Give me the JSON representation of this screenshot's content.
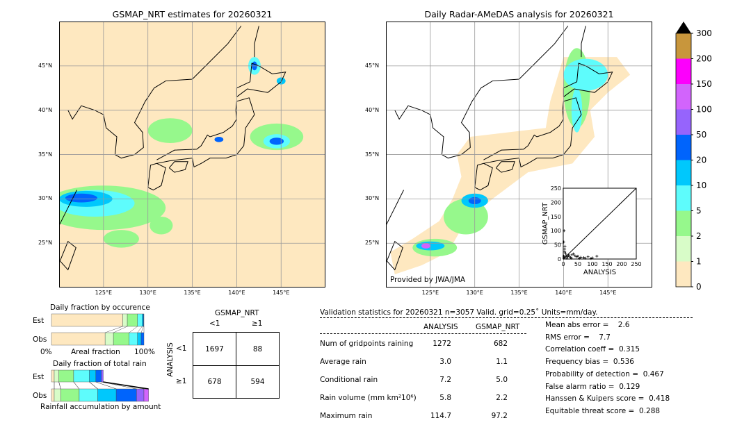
{
  "chart_data": [
    {
      "type": "heatmap",
      "title": "GSMAP_NRT estimates for 20260321",
      "x_ticks": [
        "125°E",
        "130°E",
        "135°E",
        "140°E",
        "145°E"
      ],
      "y_ticks": [
        "45°N",
        "40°N",
        "35°N",
        "30°N",
        "25°N"
      ],
      "lon_range": [
        120,
        150
      ],
      "lat_range": [
        20,
        50
      ],
      "grid": true
    },
    {
      "type": "heatmap",
      "title": "Daily Radar-AMeDAS analysis for 20260321",
      "x_ticks": [
        "125°E",
        "130°E",
        "135°E",
        "140°E",
        "145°E"
      ],
      "y_ticks": [
        "45°N",
        "40°N",
        "35°N",
        "30°N",
        "25°N"
      ],
      "lon_range": [
        120,
        150
      ],
      "lat_range": [
        20,
        50
      ],
      "grid": true,
      "annotation": "Provided by JWA/JMA"
    },
    {
      "type": "scatter",
      "xlabel": "ANALYSIS",
      "ylabel": "GSMAP_NRT",
      "xlim": [
        0,
        250
      ],
      "ylim": [
        0,
        250
      ],
      "x_ticks": [
        "0",
        "50",
        "100",
        "150",
        "200",
        "250"
      ],
      "y_ticks": [
        "0",
        "50",
        "100",
        "150",
        "200",
        "250"
      ],
      "points": [
        [
          2,
          60
        ],
        [
          3,
          100
        ],
        [
          5,
          35
        ],
        [
          5,
          25
        ],
        [
          8,
          20
        ],
        [
          10,
          12
        ],
        [
          15,
          8
        ],
        [
          20,
          10
        ],
        [
          25,
          5
        ],
        [
          30,
          15
        ],
        [
          35,
          18
        ],
        [
          40,
          12
        ],
        [
          45,
          8
        ],
        [
          50,
          10
        ],
        [
          60,
          6
        ],
        [
          70,
          5
        ],
        [
          85,
          8
        ],
        [
          100,
          4
        ],
        [
          115,
          10
        ],
        [
          4,
          5
        ],
        [
          12,
          3
        ],
        [
          18,
          15
        ],
        [
          28,
          3
        ],
        [
          55,
          2
        ],
        [
          75,
          3
        ],
        [
          95,
          2
        ],
        [
          6,
          45
        ],
        [
          2,
          10
        ],
        [
          1,
          3
        ]
      ]
    },
    {
      "type": "bar",
      "title": "Daily fraction by occurence",
      "xlabel": "Areal fraction",
      "x_ticks": [
        "0%",
        "100%"
      ],
      "categories": [
        "Est",
        "Obs"
      ],
      "series": [
        {
          "values_est": [
            0.77,
            0.05,
            0.11,
            0.05,
            0.015,
            0.005
          ]
        },
        {
          "values_obs": [
            0.58,
            0.09,
            0.17,
            0.09,
            0.04,
            0.03
          ]
        }
      ]
    },
    {
      "type": "bar",
      "title": "Daily fraction of total rain",
      "xlabel": "Rainfall accumulation by amount",
      "categories": [
        "Est",
        "Obs"
      ],
      "series": [
        {
          "values_est": [
            0.03,
            0.05,
            0.16,
            0.17,
            0.07,
            0.06,
            0.02
          ]
        },
        {
          "values_obs": [
            0.03,
            0.07,
            0.2,
            0.2,
            0.2,
            0.22,
            0.08,
            0.05
          ]
        }
      ]
    },
    {
      "type": "table",
      "title": "GSMAP_NRT",
      "row_label": "ANALYSIS",
      "col_headers": [
        "<1",
        "≥1"
      ],
      "row_headers": [
        "<1",
        "≥1"
      ],
      "cells": [
        [
          "1697",
          "88"
        ],
        [
          "678",
          "594"
        ]
      ]
    }
  ],
  "colorbar": {
    "levels": [
      "0",
      "1",
      "2",
      "5",
      "10",
      "20",
      "50",
      "100",
      "150",
      "200",
      "300"
    ],
    "colors": [
      "#fee8c0",
      "#d8fcc8",
      "#96f88c",
      "#5efcfc",
      "#00c8fc",
      "#0064fc",
      "#9664fc",
      "#d264fc",
      "#fc00fc",
      "#c8963c"
    ],
    "extend_color": "#000000"
  },
  "stats": {
    "header": "Validation statistics for 20260321  n=3057 Valid. grid=0.25˚ Units=mm/day.",
    "col_analysis": "ANALYSIS",
    "col_gsmap": "GSMAP_NRT",
    "rows": [
      {
        "label": "Num of gridpoints raining",
        "a": "1272",
        "g": "682"
      },
      {
        "label": "Average rain",
        "a": "3.0",
        "g": "1.1"
      },
      {
        "label": "Conditional rain",
        "a": "7.2",
        "g": "5.0"
      },
      {
        "label": "Rain volume (mm km²10⁶)",
        "a": "5.8",
        "g": "2.2"
      },
      {
        "label": "Maximum rain",
        "a": "114.7",
        "g": "97.2"
      }
    ],
    "scores": [
      "Mean abs error =    2.6",
      "RMS error =    7.7",
      "Correlation coeff =  0.315",
      "Frequency bias =  0.536",
      "Probability of detection =  0.467",
      "False alarm ratio =  0.129",
      "Hanssen & Kuipers score =  0.418",
      "Equitable threat score =  0.288"
    ]
  }
}
